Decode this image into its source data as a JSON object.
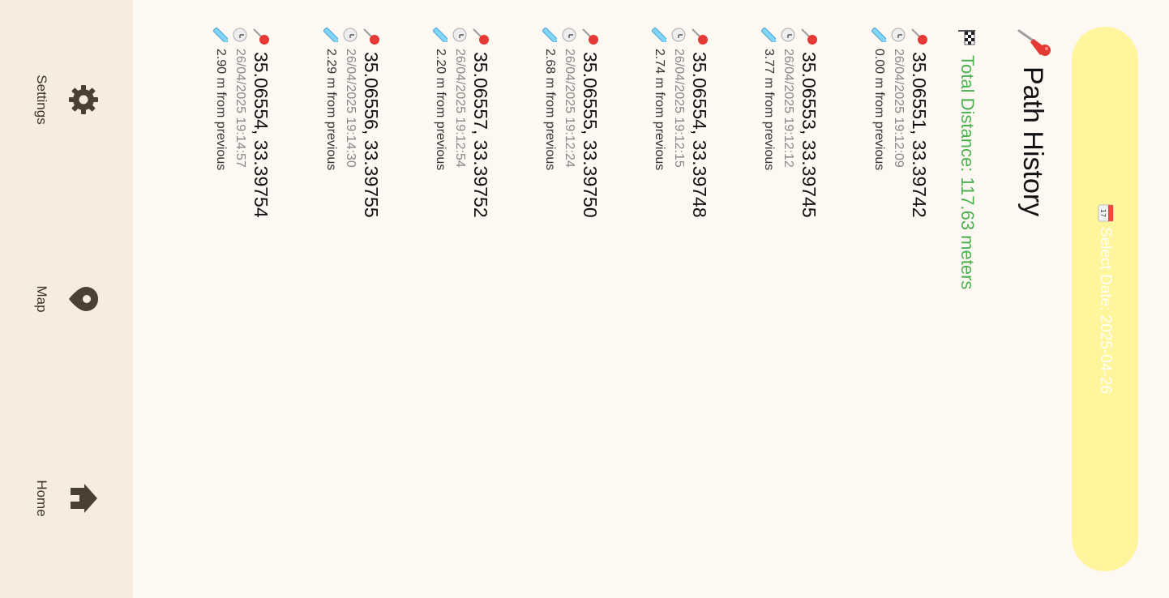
{
  "date_button": {
    "label": "Select Date: 2025-04-26",
    "icon": "calendar-icon",
    "calendar_day": "17"
  },
  "title": "Path History",
  "total_distance": "Total Distance: 117.63 meters",
  "entries": [
    {
      "coords": "35.06551, 33.39742",
      "time": "26/04/2025 19:12:09",
      "distance": "0.00 m from previous"
    },
    {
      "coords": "35.06553, 33.39745",
      "time": "26/04/2025 19:12:12",
      "distance": "3.77 m from previous"
    },
    {
      "coords": "35.06554, 33.39748",
      "time": "26/04/2025 19:12:15",
      "distance": "2.74 m from previous"
    },
    {
      "coords": "35.06555, 33.39750",
      "time": "26/04/2025 19:12:24",
      "distance": "2.68 m from previous"
    },
    {
      "coords": "35.06557, 33.39752",
      "time": "26/04/2025 19:12:54",
      "distance": "2.20 m from previous"
    },
    {
      "coords": "35.06556, 33.39755",
      "time": "26/04/2025 19:14:30",
      "distance": "2.29 m from previous"
    },
    {
      "coords": "35.06554, 33.39754",
      "time": "26/04/2025 19:14:57",
      "distance": "2.90 m from previous"
    }
  ],
  "nav": [
    {
      "label": "Home",
      "icon": "home-icon"
    },
    {
      "label": "Map",
      "icon": "map-pin-icon"
    },
    {
      "label": "Settings",
      "icon": "gear-icon"
    }
  ],
  "colors": {
    "background": "#fdf8f2",
    "date_button": "#fff59d",
    "total_distance": "#4caf50",
    "nav_background": "#f7ece0",
    "nav_icon": "#4a4132"
  }
}
